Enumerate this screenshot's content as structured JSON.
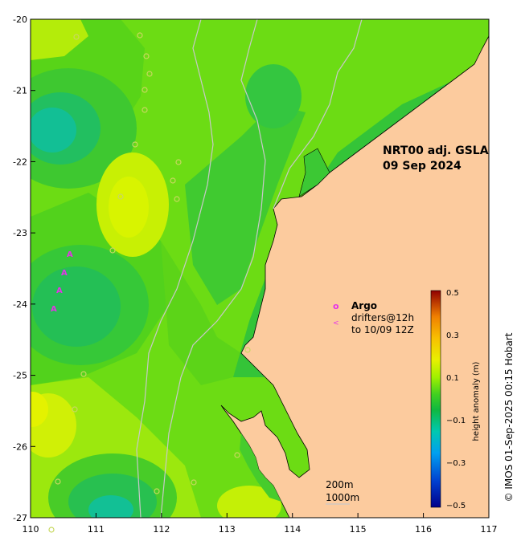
{
  "map": {
    "product_title": "NRT00 adj. GSLA",
    "date": "09 Sep 2024",
    "credit": "© IMOS 01-Sep-2025 00:15 Hobart",
    "x_ticks": [
      "110",
      "111",
      "112",
      "113",
      "114",
      "115",
      "116",
      "117"
    ],
    "y_ticks": [
      "-20",
      "-21",
      "-22",
      "-23",
      "-24",
      "-25",
      "-26",
      "-27"
    ]
  },
  "legend": {
    "argo_symbol": "o",
    "argo_label": "Argo",
    "drifter_symbol": "<",
    "drifter_line1": "drifters@12h",
    "drifter_line2": "to 10/09 12Z",
    "isobath_200": "200m",
    "isobath_1000": "1000m"
  },
  "colorbar": {
    "title": "height anomaly (m)",
    "ticks": [
      "0.5",
      "0.3",
      "0.1",
      "−0.1",
      "−0.3",
      "−0.5"
    ]
  },
  "colors": {
    "land": "#fccb9e",
    "ocean_base": "#6cdc14",
    "marker": "#e533e8"
  }
}
